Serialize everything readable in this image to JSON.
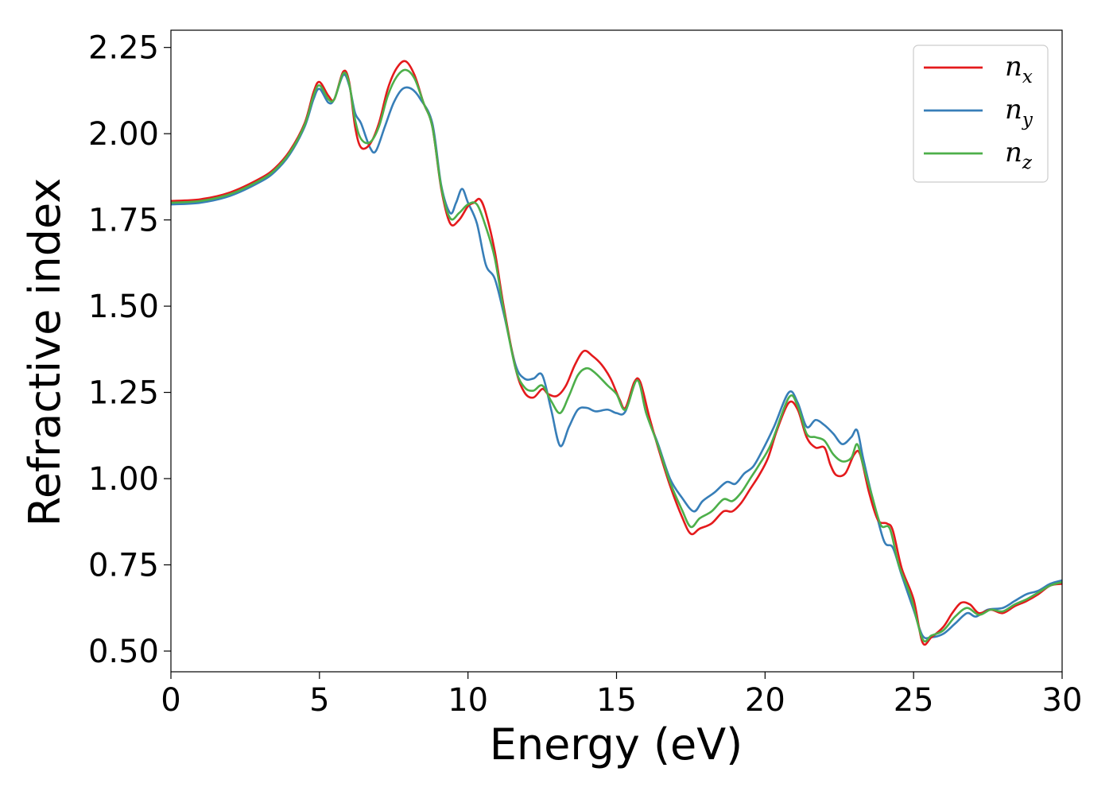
{
  "chart_data": {
    "type": "line",
    "title": "",
    "xlabel": "Energy (eV)",
    "ylabel": "Refractive index",
    "xlim": [
      0,
      30
    ],
    "ylim": [
      0.44,
      2.3
    ],
    "xticks": [
      0,
      5,
      10,
      15,
      20,
      25,
      30
    ],
    "xtick_labels": [
      "0",
      "5",
      "10",
      "15",
      "20",
      "25",
      "30"
    ],
    "yticks": [
      0.5,
      0.75,
      1.0,
      1.25,
      1.5,
      1.75,
      2.0,
      2.25
    ],
    "ytick_labels": [
      "0.50",
      "0.75",
      "1.00",
      "1.25",
      "1.50",
      "1.75",
      "2.00",
      "2.25"
    ],
    "grid": false,
    "legend_position": "top-right",
    "series": [
      {
        "name": "n_x",
        "legend_base": "n",
        "legend_sub": "x",
        "color": "#e41a1c",
        "points": [
          [
            0,
            1.805
          ],
          [
            1,
            1.81
          ],
          [
            2,
            1.83
          ],
          [
            3,
            1.87
          ],
          [
            3.5,
            1.9
          ],
          [
            4,
            1.95
          ],
          [
            4.5,
            2.03
          ],
          [
            4.8,
            2.12
          ],
          [
            5.0,
            2.15
          ],
          [
            5.3,
            2.11
          ],
          [
            5.5,
            2.1
          ],
          [
            5.8,
            2.18
          ],
          [
            6.0,
            2.15
          ],
          [
            6.2,
            2.02
          ],
          [
            6.4,
            1.96
          ],
          [
            6.7,
            1.97
          ],
          [
            7.0,
            2.03
          ],
          [
            7.3,
            2.13
          ],
          [
            7.6,
            2.19
          ],
          [
            7.9,
            2.21
          ],
          [
            8.2,
            2.17
          ],
          [
            8.5,
            2.09
          ],
          [
            8.8,
            2.02
          ],
          [
            9.1,
            1.84
          ],
          [
            9.4,
            1.74
          ],
          [
            9.7,
            1.75
          ],
          [
            10.0,
            1.79
          ],
          [
            10.2,
            1.8
          ],
          [
            10.4,
            1.81
          ],
          [
            10.6,
            1.77
          ],
          [
            10.9,
            1.66
          ],
          [
            11.2,
            1.5
          ],
          [
            11.6,
            1.32
          ],
          [
            11.9,
            1.25
          ],
          [
            12.2,
            1.235
          ],
          [
            12.5,
            1.26
          ],
          [
            12.7,
            1.245
          ],
          [
            13.0,
            1.24
          ],
          [
            13.3,
            1.27
          ],
          [
            13.6,
            1.33
          ],
          [
            13.9,
            1.37
          ],
          [
            14.2,
            1.355
          ],
          [
            14.5,
            1.33
          ],
          [
            14.8,
            1.29
          ],
          [
            15.1,
            1.23
          ],
          [
            15.3,
            1.205
          ],
          [
            15.6,
            1.28
          ],
          [
            15.8,
            1.28
          ],
          [
            16.1,
            1.18
          ],
          [
            16.4,
            1.09
          ],
          [
            16.8,
            0.98
          ],
          [
            17.2,
            0.89
          ],
          [
            17.5,
            0.84
          ],
          [
            17.8,
            0.855
          ],
          [
            18.2,
            0.87
          ],
          [
            18.6,
            0.905
          ],
          [
            18.9,
            0.905
          ],
          [
            19.2,
            0.93
          ],
          [
            19.5,
            0.97
          ],
          [
            19.8,
            1.01
          ],
          [
            20.1,
            1.06
          ],
          [
            20.4,
            1.14
          ],
          [
            20.8,
            1.22
          ],
          [
            21.1,
            1.2
          ],
          [
            21.4,
            1.12
          ],
          [
            21.7,
            1.09
          ],
          [
            22.0,
            1.09
          ],
          [
            22.2,
            1.04
          ],
          [
            22.4,
            1.01
          ],
          [
            22.7,
            1.015
          ],
          [
            23.0,
            1.07
          ],
          [
            23.2,
            1.07
          ],
          [
            23.5,
            0.96
          ],
          [
            23.8,
            0.88
          ],
          [
            24.1,
            0.87
          ],
          [
            24.3,
            0.85
          ],
          [
            24.6,
            0.74
          ],
          [
            25.0,
            0.65
          ],
          [
            25.3,
            0.525
          ],
          [
            25.6,
            0.54
          ],
          [
            26.0,
            0.57
          ],
          [
            26.3,
            0.61
          ],
          [
            26.6,
            0.64
          ],
          [
            26.9,
            0.635
          ],
          [
            27.2,
            0.61
          ],
          [
            27.6,
            0.62
          ],
          [
            28.0,
            0.61
          ],
          [
            28.4,
            0.63
          ],
          [
            28.8,
            0.645
          ],
          [
            29.2,
            0.665
          ],
          [
            29.6,
            0.69
          ],
          [
            30.0,
            0.695
          ]
        ]
      },
      {
        "name": "n_y",
        "legend_base": "n",
        "legend_sub": "y",
        "color": "#377eb8",
        "points": [
          [
            0,
            1.795
          ],
          [
            1,
            1.8
          ],
          [
            2,
            1.82
          ],
          [
            3,
            1.86
          ],
          [
            3.5,
            1.89
          ],
          [
            4,
            1.94
          ],
          [
            4.5,
            2.02
          ],
          [
            4.8,
            2.1
          ],
          [
            5.0,
            2.13
          ],
          [
            5.3,
            2.09
          ],
          [
            5.5,
            2.1
          ],
          [
            5.8,
            2.17
          ],
          [
            6.0,
            2.14
          ],
          [
            6.2,
            2.06
          ],
          [
            6.4,
            2.03
          ],
          [
            6.7,
            1.96
          ],
          [
            6.9,
            1.95
          ],
          [
            7.2,
            2.02
          ],
          [
            7.5,
            2.09
          ],
          [
            7.8,
            2.13
          ],
          [
            8.1,
            2.13
          ],
          [
            8.4,
            2.1
          ],
          [
            8.8,
            2.03
          ],
          [
            9.1,
            1.85
          ],
          [
            9.4,
            1.77
          ],
          [
            9.6,
            1.8
          ],
          [
            9.8,
            1.84
          ],
          [
            10.0,
            1.8
          ],
          [
            10.3,
            1.74
          ],
          [
            10.6,
            1.62
          ],
          [
            10.9,
            1.58
          ],
          [
            11.2,
            1.48
          ],
          [
            11.6,
            1.33
          ],
          [
            11.9,
            1.29
          ],
          [
            12.2,
            1.29
          ],
          [
            12.5,
            1.3
          ],
          [
            12.8,
            1.2
          ],
          [
            13.1,
            1.095
          ],
          [
            13.4,
            1.15
          ],
          [
            13.7,
            1.2
          ],
          [
            14.0,
            1.205
          ],
          [
            14.3,
            1.195
          ],
          [
            14.7,
            1.2
          ],
          [
            15.0,
            1.19
          ],
          [
            15.3,
            1.195
          ],
          [
            15.7,
            1.29
          ],
          [
            16.0,
            1.19
          ],
          [
            16.4,
            1.1
          ],
          [
            16.8,
            1.0
          ],
          [
            17.2,
            0.945
          ],
          [
            17.6,
            0.905
          ],
          [
            17.9,
            0.935
          ],
          [
            18.3,
            0.96
          ],
          [
            18.7,
            0.99
          ],
          [
            19.0,
            0.985
          ],
          [
            19.3,
            1.015
          ],
          [
            19.6,
            1.035
          ],
          [
            19.9,
            1.08
          ],
          [
            20.3,
            1.15
          ],
          [
            20.8,
            1.25
          ],
          [
            21.1,
            1.22
          ],
          [
            21.4,
            1.15
          ],
          [
            21.7,
            1.17
          ],
          [
            22.0,
            1.155
          ],
          [
            22.3,
            1.13
          ],
          [
            22.6,
            1.1
          ],
          [
            22.9,
            1.12
          ],
          [
            23.1,
            1.14
          ],
          [
            23.3,
            1.06
          ],
          [
            23.6,
            0.95
          ],
          [
            24.0,
            0.82
          ],
          [
            24.3,
            0.8
          ],
          [
            24.6,
            0.72
          ],
          [
            25.0,
            0.62
          ],
          [
            25.3,
            0.545
          ],
          [
            25.6,
            0.54
          ],
          [
            26.0,
            0.55
          ],
          [
            26.4,
            0.58
          ],
          [
            26.8,
            0.61
          ],
          [
            27.1,
            0.6
          ],
          [
            27.5,
            0.62
          ],
          [
            28.0,
            0.625
          ],
          [
            28.4,
            0.645
          ],
          [
            28.8,
            0.665
          ],
          [
            29.2,
            0.675
          ],
          [
            29.6,
            0.695
          ],
          [
            30.0,
            0.705
          ]
        ]
      },
      {
        "name": "n_z",
        "legend_base": "n",
        "legend_sub": "z",
        "color": "#4daf4a",
        "points": [
          [
            0,
            1.8
          ],
          [
            1,
            1.805
          ],
          [
            2,
            1.825
          ],
          [
            3,
            1.865
          ],
          [
            3.5,
            1.895
          ],
          [
            4,
            1.945
          ],
          [
            4.5,
            2.025
          ],
          [
            4.8,
            2.11
          ],
          [
            5.0,
            2.14
          ],
          [
            5.3,
            2.1
          ],
          [
            5.5,
            2.1
          ],
          [
            5.8,
            2.175
          ],
          [
            6.0,
            2.145
          ],
          [
            6.2,
            2.04
          ],
          [
            6.4,
            1.985
          ],
          [
            6.7,
            1.975
          ],
          [
            7.0,
            2.02
          ],
          [
            7.3,
            2.11
          ],
          [
            7.6,
            2.165
          ],
          [
            7.9,
            2.185
          ],
          [
            8.2,
            2.16
          ],
          [
            8.5,
            2.09
          ],
          [
            8.8,
            2.02
          ],
          [
            9.1,
            1.845
          ],
          [
            9.4,
            1.755
          ],
          [
            9.7,
            1.77
          ],
          [
            10.0,
            1.795
          ],
          [
            10.3,
            1.795
          ],
          [
            10.6,
            1.73
          ],
          [
            10.9,
            1.64
          ],
          [
            11.2,
            1.49
          ],
          [
            11.6,
            1.32
          ],
          [
            11.9,
            1.265
          ],
          [
            12.2,
            1.255
          ],
          [
            12.5,
            1.27
          ],
          [
            12.8,
            1.225
          ],
          [
            13.1,
            1.19
          ],
          [
            13.4,
            1.24
          ],
          [
            13.7,
            1.3
          ],
          [
            14.0,
            1.32
          ],
          [
            14.3,
            1.305
          ],
          [
            14.7,
            1.27
          ],
          [
            15.0,
            1.245
          ],
          [
            15.3,
            1.2
          ],
          [
            15.7,
            1.285
          ],
          [
            16.0,
            1.19
          ],
          [
            16.4,
            1.095
          ],
          [
            16.8,
            0.99
          ],
          [
            17.2,
            0.91
          ],
          [
            17.5,
            0.86
          ],
          [
            17.8,
            0.885
          ],
          [
            18.2,
            0.905
          ],
          [
            18.6,
            0.94
          ],
          [
            18.9,
            0.935
          ],
          [
            19.2,
            0.96
          ],
          [
            19.5,
            1.0
          ],
          [
            19.8,
            1.04
          ],
          [
            20.2,
            1.1
          ],
          [
            20.8,
            1.235
          ],
          [
            21.1,
            1.21
          ],
          [
            21.4,
            1.13
          ],
          [
            21.7,
            1.12
          ],
          [
            22.0,
            1.11
          ],
          [
            22.3,
            1.07
          ],
          [
            22.6,
            1.05
          ],
          [
            22.9,
            1.06
          ],
          [
            23.1,
            1.1
          ],
          [
            23.3,
            1.04
          ],
          [
            23.6,
            0.95
          ],
          [
            23.9,
            0.865
          ],
          [
            24.2,
            0.855
          ],
          [
            24.5,
            0.75
          ],
          [
            24.9,
            0.66
          ],
          [
            25.3,
            0.535
          ],
          [
            25.6,
            0.545
          ],
          [
            26.0,
            0.56
          ],
          [
            26.4,
            0.6
          ],
          [
            26.8,
            0.625
          ],
          [
            27.2,
            0.605
          ],
          [
            27.6,
            0.62
          ],
          [
            28.0,
            0.615
          ],
          [
            28.4,
            0.635
          ],
          [
            28.8,
            0.65
          ],
          [
            29.2,
            0.67
          ],
          [
            29.6,
            0.69
          ],
          [
            30.0,
            0.7
          ]
        ]
      }
    ]
  }
}
